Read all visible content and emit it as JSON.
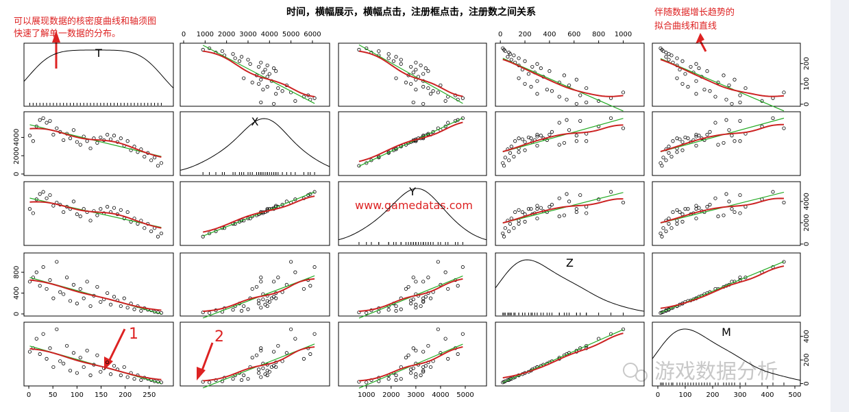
{
  "chart_data": {
    "type": "scatter_matrix",
    "title": "时间，横幅展示，横幅点击，注册框点击，注册数之间关系",
    "annotations": [
      "可以展现数据的核密度曲线和轴须图",
      "快速了解单一数据的分布。",
      "伴随数据增长趋势的",
      "拟合曲线和直线",
      "1",
      "2",
      "www.gamedatas.com",
      "游戏数据分析"
    ],
    "variables": [
      {
        "name": "T",
        "lim": [
          -10,
          300
        ],
        "xticks": [
          0,
          50,
          100,
          150,
          200,
          250
        ],
        "yticks": [
          0,
          100,
          200
        ],
        "values": [
          2,
          9,
          16,
          23,
          30,
          37,
          44,
          51,
          58,
          65,
          72,
          79,
          86,
          93,
          100,
          107,
          114,
          121,
          128,
          135,
          142,
          149,
          156,
          163,
          170,
          177,
          184,
          191,
          198,
          205,
          212,
          219,
          226,
          233,
          240,
          247,
          254,
          261,
          268,
          275
        ]
      },
      {
        "name": "X",
        "lim": [
          -160,
          6800
        ],
        "xticks": [
          0,
          1000,
          2000,
          3000,
          4000,
          5000,
          6000
        ],
        "yticks": [
          0,
          2000,
          4000
        ],
        "values": [
          4200,
          3600,
          5200,
          5900,
          6100,
          5600,
          5800,
          4300,
          5000,
          4600,
          3700,
          4400,
          3900,
          4800,
          3500,
          3200,
          4100,
          3600,
          2800,
          3900,
          3400,
          4000,
          3700,
          4300,
          3800,
          4200,
          3500,
          3900,
          3100,
          3600,
          2600,
          3000,
          2400,
          2700,
          1900,
          2300,
          1500,
          1800,
          900,
          1200
        ]
      },
      {
        "name": "Y",
        "lim": [
          -130,
          5860
        ],
        "xticks": [
          1000,
          2000,
          3000,
          4000,
          5000
        ],
        "yticks": [
          0,
          2000,
          4000
        ],
        "values": [
          3300,
          2900,
          4200,
          4700,
          4900,
          4300,
          4600,
          3600,
          3900,
          3700,
          3000,
          3500,
          3300,
          4000,
          2800,
          2600,
          3300,
          3000,
          2200,
          3100,
          2700,
          3300,
          2900,
          3500,
          3000,
          3400,
          2800,
          3200,
          2400,
          3000,
          2100,
          2400,
          1900,
          2200,
          1500,
          1900,
          1200,
          1500,
          700,
          1000
        ]
      },
      {
        "name": "Z",
        "lim": [
          -40,
          1170
        ],
        "xticks": [
          0,
          200,
          400,
          600,
          800,
          1000
        ],
        "yticks": [
          0,
          400,
          800
        ],
        "values": [
          620,
          700,
          800,
          540,
          900,
          480,
          650,
          300,
          1000,
          420,
          380,
          700,
          250,
          560,
          200,
          480,
          300,
          620,
          150,
          350,
          520,
          230,
          280,
          400,
          180,
          330,
          260,
          150,
          300,
          120,
          200,
          90,
          150,
          60,
          110,
          80,
          70,
          40,
          30,
          20
        ]
      },
      {
        "name": "M",
        "lim": [
          -20,
          520
        ],
        "xticks": [
          0,
          100,
          200,
          300,
          400,
          500
        ],
        "yticks": [
          0,
          200,
          400
        ],
        "values": [
          270,
          300,
          380,
          250,
          420,
          210,
          300,
          140,
          460,
          190,
          170,
          320,
          110,
          260,
          90,
          220,
          140,
          280,
          70,
          160,
          240,
          100,
          130,
          180,
          80,
          150,
          120,
          70,
          140,
          55,
          90,
          40,
          70,
          30,
          50,
          40,
          30,
          20,
          15,
          10
        ]
      }
    ]
  }
}
